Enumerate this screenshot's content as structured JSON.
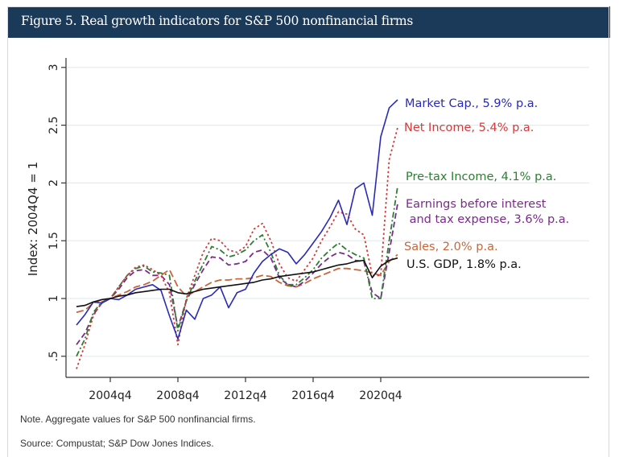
{
  "figure": {
    "title": "Figure 5. Real growth indicators for S&P 500 nonfinancial firms",
    "note": "Note. Aggregate values for S&P 500 nonfinancial firms.",
    "source": "Source: Compustat; S&P Dow Jones Indices."
  },
  "chart_data": {
    "type": "line",
    "title": "Figure 5. Real growth indicators for S&P 500 nonfinancial firms",
    "xlabel": "",
    "ylabel": "Index: 2004Q4 = 1",
    "xlim": [
      2002.5,
      2023.5
    ],
    "ylim": [
      0.37,
      3.08
    ],
    "yticks": [
      0.5,
      1,
      1.5,
      2,
      2.5,
      3
    ],
    "ytick_labels": [
      ".5",
      "1",
      "1.5",
      "2",
      "2.5",
      "3"
    ],
    "xticks": [
      2004.75,
      2008.75,
      2012.75,
      2016.75,
      2020.75
    ],
    "xtick_labels": [
      "2004q4",
      "2008q4",
      "2012q4",
      "2016q4",
      "2020q4"
    ],
    "grid": true,
    "legend": "direct labels at right end of lines",
    "x": [
      2002.75,
      2003.25,
      2003.75,
      2004.25,
      2004.75,
      2005.25,
      2005.75,
      2006.25,
      2006.75,
      2007.25,
      2007.75,
      2008.25,
      2008.75,
      2009.25,
      2009.75,
      2010.25,
      2010.75,
      2011.25,
      2011.75,
      2012.25,
      2012.75,
      2013.25,
      2013.75,
      2014.25,
      2014.75,
      2015.25,
      2015.75,
      2016.25,
      2016.75,
      2017.25,
      2017.75,
      2018.25,
      2018.75,
      2019.25,
      2019.75,
      2020.25,
      2020.75,
      2021.25,
      2021.75
    ],
    "series": [
      {
        "name": "Market Cap.",
        "label": "Market Cap., 5.9% p.a.",
        "color": "#2a2ab8",
        "dash": "solid",
        "values": [
          0.77,
          0.86,
          0.97,
          0.96,
          1.0,
          0.99,
          1.03,
          1.08,
          1.1,
          1.12,
          1.07,
          0.85,
          0.65,
          0.9,
          0.82,
          1.0,
          1.03,
          1.1,
          0.92,
          1.05,
          1.08,
          1.22,
          1.32,
          1.38,
          1.43,
          1.4,
          1.3,
          1.38,
          1.48,
          1.58,
          1.7,
          1.85,
          1.64,
          1.95,
          2.0,
          1.72,
          2.4,
          2.65,
          2.72
        ]
      },
      {
        "name": "Net Income",
        "label": "Net Income, 5.4% p.a.",
        "color": "#d43a3a",
        "dash": "dotted",
        "values": [
          0.39,
          0.6,
          0.85,
          0.97,
          1.0,
          1.1,
          1.2,
          1.27,
          1.29,
          1.25,
          1.2,
          1.05,
          0.6,
          1.0,
          1.2,
          1.4,
          1.52,
          1.5,
          1.42,
          1.4,
          1.45,
          1.6,
          1.65,
          1.5,
          1.3,
          1.18,
          1.15,
          1.25,
          1.35,
          1.5,
          1.62,
          1.75,
          1.73,
          1.6,
          1.55,
          1.2,
          1.2,
          2.2,
          2.48
        ]
      },
      {
        "name": "Pre-tax Income",
        "label": "Pre-tax Income, 4.1% p.a.",
        "color": "#2e7d32",
        "dash": "dashdot",
        "values": [
          0.5,
          0.65,
          0.88,
          0.97,
          1.0,
          1.1,
          1.2,
          1.26,
          1.28,
          1.23,
          1.22,
          1.2,
          0.72,
          0.98,
          1.15,
          1.3,
          1.45,
          1.42,
          1.36,
          1.38,
          1.42,
          1.5,
          1.55,
          1.4,
          1.2,
          1.12,
          1.12,
          1.18,
          1.25,
          1.35,
          1.42,
          1.48,
          1.42,
          1.38,
          1.35,
          1.0,
          1.0,
          1.5,
          1.97
        ]
      },
      {
        "name": "Earnings before interest and tax expense",
        "label": "Earnings before interest and tax expense, 3.6% p.a.",
        "label_line1": "Earnings before interest",
        "label_line2": " and tax expense, 3.6% p.a.",
        "color": "#7b2a8c",
        "dash": "dashed",
        "values": [
          0.6,
          0.7,
          0.86,
          0.96,
          1.0,
          1.08,
          1.18,
          1.24,
          1.25,
          1.2,
          1.2,
          1.12,
          0.75,
          0.98,
          1.12,
          1.25,
          1.36,
          1.35,
          1.29,
          1.3,
          1.32,
          1.4,
          1.42,
          1.35,
          1.18,
          1.12,
          1.1,
          1.15,
          1.22,
          1.3,
          1.36,
          1.4,
          1.38,
          1.33,
          1.32,
          1.05,
          1.0,
          1.4,
          1.82
        ]
      },
      {
        "name": "Sales",
        "label": "Sales, 2.0% p.a.",
        "color": "#c8663a",
        "dash": "longdash",
        "values": [
          0.88,
          0.9,
          0.96,
          0.99,
          1.0,
          1.03,
          1.06,
          1.1,
          1.12,
          1.15,
          1.2,
          1.25,
          1.1,
          1.02,
          1.06,
          1.1,
          1.14,
          1.16,
          1.16,
          1.17,
          1.17,
          1.18,
          1.2,
          1.19,
          1.14,
          1.11,
          1.1,
          1.13,
          1.17,
          1.2,
          1.23,
          1.26,
          1.26,
          1.25,
          1.24,
          1.22,
          1.2,
          1.32,
          1.38
        ]
      },
      {
        "name": "U.S. GDP",
        "label": "U.S. GDP, 1.8% p.a.",
        "color": "#111111",
        "dash": "solid",
        "values": [
          0.93,
          0.94,
          0.97,
          0.99,
          1.0,
          1.02,
          1.03,
          1.05,
          1.06,
          1.07,
          1.08,
          1.08,
          1.05,
          1.04,
          1.06,
          1.08,
          1.09,
          1.1,
          1.11,
          1.12,
          1.13,
          1.14,
          1.16,
          1.17,
          1.19,
          1.2,
          1.21,
          1.22,
          1.23,
          1.25,
          1.27,
          1.29,
          1.3,
          1.32,
          1.33,
          1.18,
          1.28,
          1.33,
          1.35
        ]
      }
    ]
  }
}
